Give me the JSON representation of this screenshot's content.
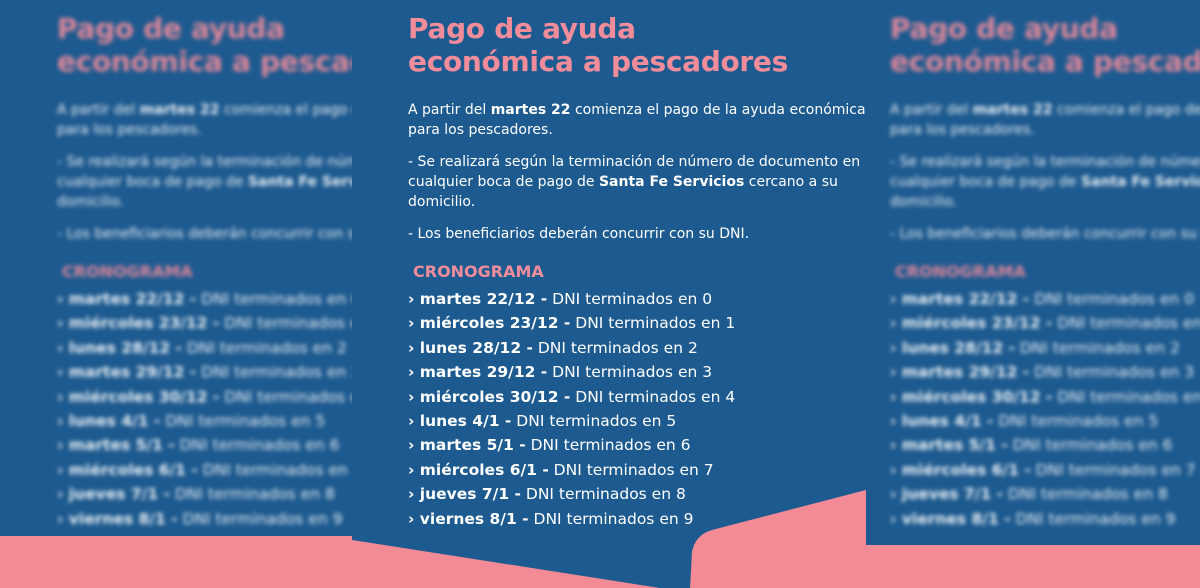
{
  "title_line1": "Pago de ayuda",
  "title_line2": "económica a pescadores",
  "intro": {
    "pre": "A partir del ",
    "bold": "martes 22",
    "post": " comienza el pago de la ayuda económica para los pescadores."
  },
  "point1": {
    "pre": "- Se realizará según la terminación de número de documento en cualquier boca de pago de ",
    "bold": "Santa Fe Servicios",
    "post": " cercano a su domicilio."
  },
  "point2": "- Los beneficiarios deberán concurrir con su DNI.",
  "schedule_heading": "CRONOGRAMA",
  "schedule": [
    {
      "date": "› martes 22/12 -",
      "text": " DNI terminados en 0"
    },
    {
      "date": "› miércoles 23/12 -",
      "text": " DNI terminados en 1"
    },
    {
      "date": "› lunes 28/12 -",
      "text": " DNI terminados en 2"
    },
    {
      "date": "› martes 29/12 -",
      "text": " DNI terminados en 3"
    },
    {
      "date": "› miércoles 30/12 -",
      "text": " DNI terminados en 4"
    },
    {
      "date": "› lunes 4/1 -",
      "text": " DNI terminados en 5"
    },
    {
      "date": "› martes 5/1 -",
      "text": " DNI terminados en 6"
    },
    {
      "date": "› miércoles 6/1 -",
      "text": " DNI terminados en 7"
    },
    {
      "date": "› jueves 7/1 -",
      "text": " DNI terminados en 8"
    },
    {
      "date": "› viernes 8/1 -",
      "text": " DNI terminados en 9"
    }
  ],
  "colors": {
    "background": "#1d5a8f",
    "accent": "#f18c9b"
  }
}
